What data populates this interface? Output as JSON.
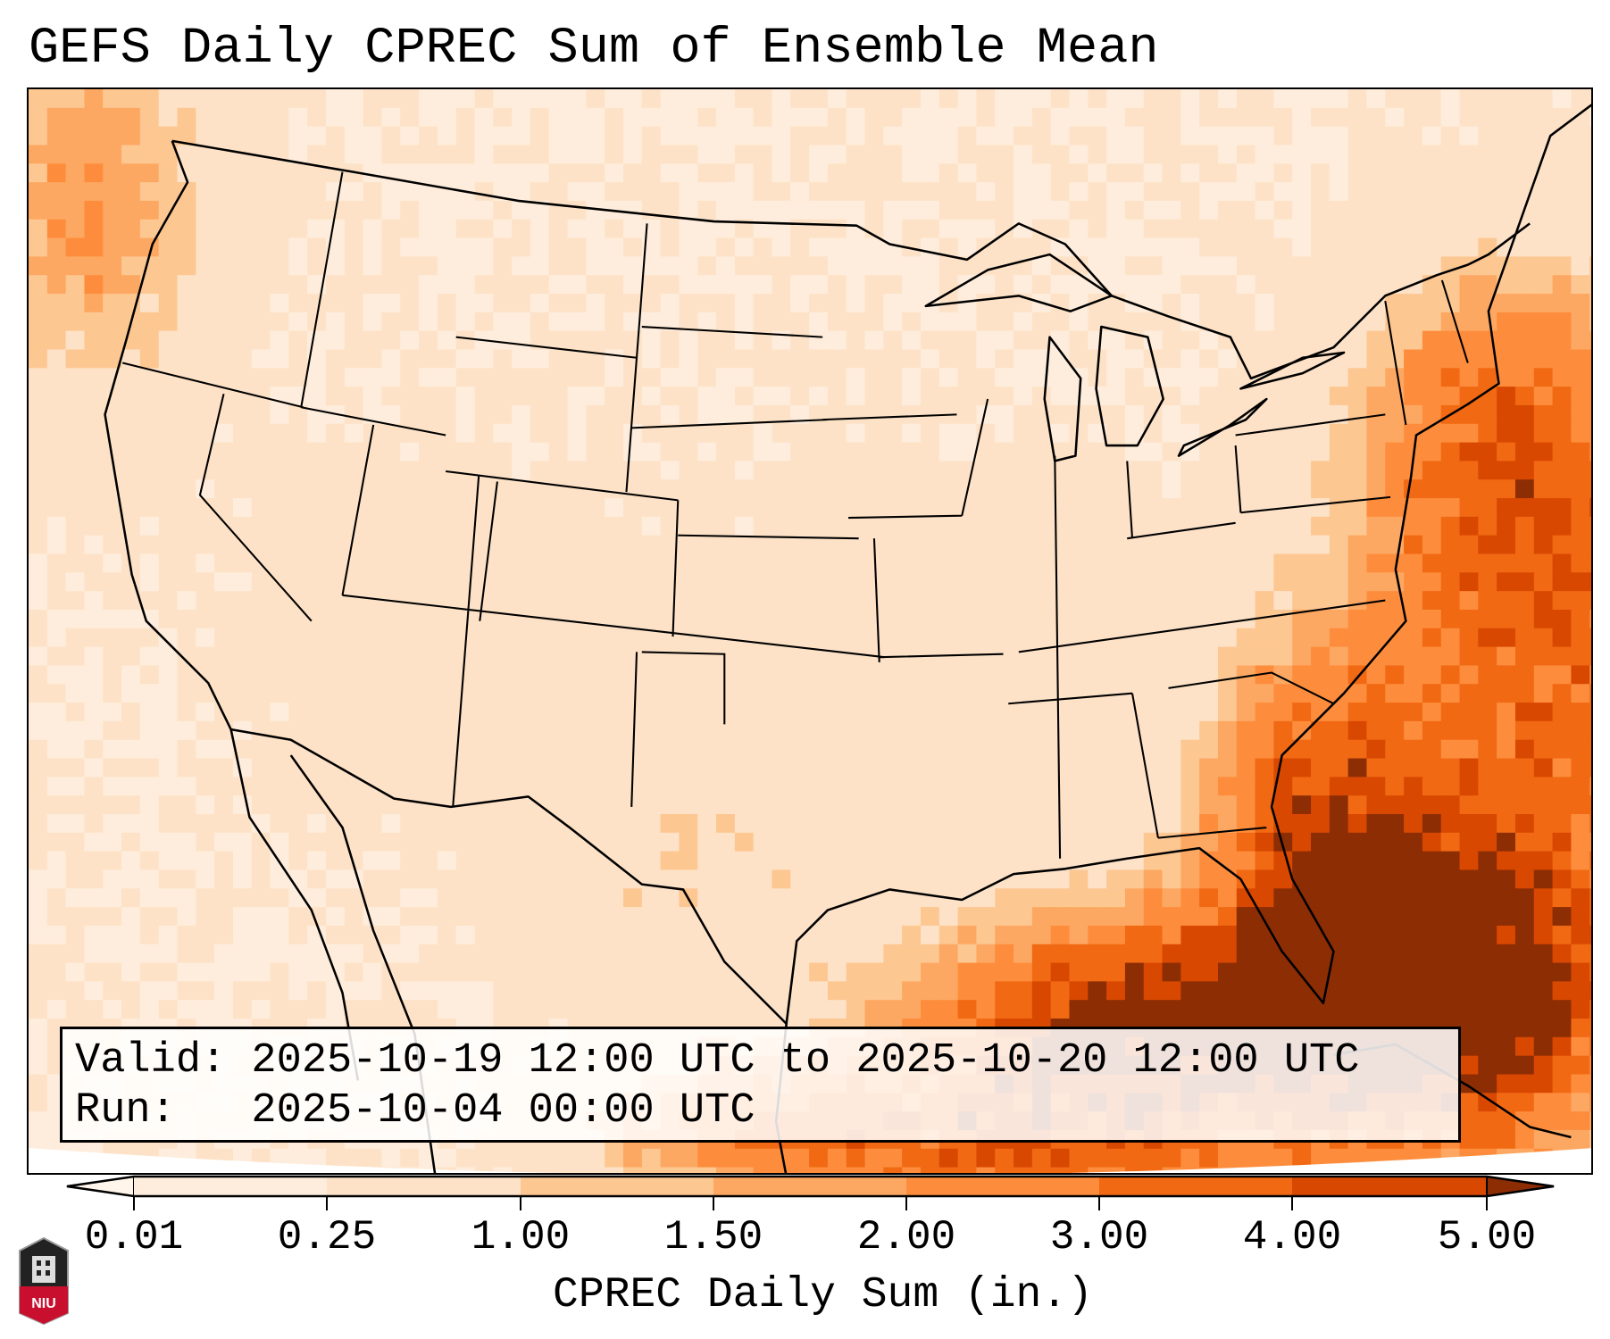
{
  "title": "GEFS Daily CPREC Sum of Ensemble Mean",
  "info": {
    "valid_line": "Valid: 2025-10-19 12:00 UTC to 2025-10-20 12:00 UTC",
    "run_line": "Run:   2025-10-04 00:00 UTC"
  },
  "colorbar": {
    "label": "CPREC Daily Sum (in.)",
    "ticks": [
      "0.01",
      "0.25",
      "1.00",
      "1.50",
      "2.00",
      "3.00",
      "4.00",
      "5.00"
    ],
    "levels": [
      0.01,
      0.25,
      1.0,
      1.5,
      2.0,
      3.0,
      4.0,
      5.0
    ],
    "colors": [
      "#fff5eb",
      "#feeddc",
      "#fde2c7",
      "#fdc792",
      "#fda862",
      "#fd8d3c",
      "#f16913",
      "#d94801",
      "#8c2d04"
    ]
  },
  "logo": {
    "text": "NIU"
  }
}
